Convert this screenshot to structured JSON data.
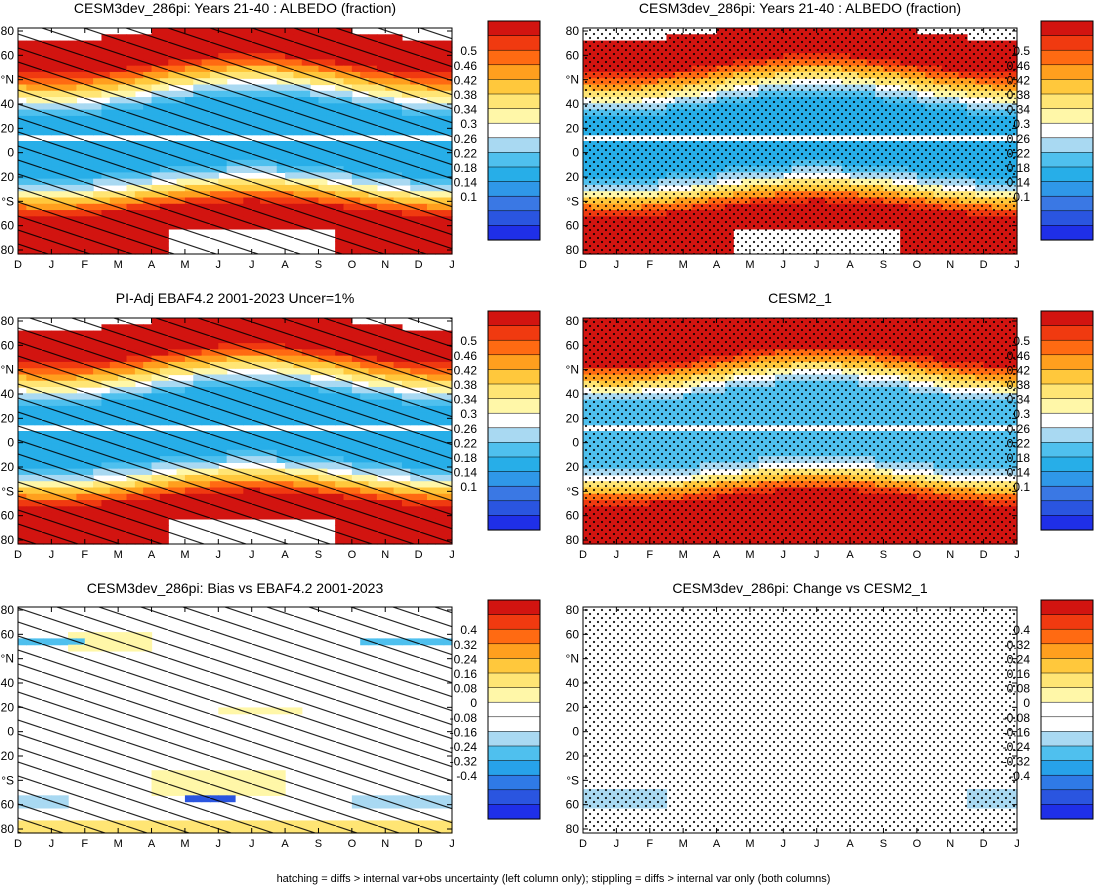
{
  "footer": "hatching = diffs > internal var+obs uncertainty (left column only); stippling = diffs > internal var only (both columns)",
  "month_labels": [
    "D",
    "J",
    "F",
    "M",
    "A",
    "M",
    "J",
    "J",
    "A",
    "S",
    "O",
    "N",
    "D",
    "J"
  ],
  "lat_ticks": [
    "80",
    "60",
    "°N",
    "40",
    "20",
    "0",
    "20",
    "°S",
    "60",
    "80"
  ],
  "palette": {
    "seq": [
      "#1f2fe8",
      "#2a55e0",
      "#3a78e4",
      "#2f98e8",
      "#27aee8",
      "#4fc0ee",
      "#a9d9f2",
      "#ffffff",
      "#fff7a8",
      "#ffe574",
      "#ffc83c",
      "#ff9f1e",
      "#ff6a12",
      "#f03a10",
      "#d21410"
    ],
    "div": [
      "#1f2fe8",
      "#2a55e0",
      "#2f7ae6",
      "#27a2ea",
      "#4fc0ee",
      "#a9d9f2",
      "#ffffff",
      "#ffffff",
      "#fff7a8",
      "#ffe574",
      "#ffc83c",
      "#ff9f1e",
      "#ff6a12",
      "#f03a10",
      "#d21410"
    ]
  },
  "chart_data": [
    {
      "type": "heatmap",
      "title": "CESM3dev_286pi: Years 21-40 : ALBEDO (fraction)",
      "colorbar": [
        "0.5",
        "0.46",
        "0.42",
        "0.38",
        "0.34",
        "0.3",
        "0.26",
        "0.22",
        "0.18",
        "0.14",
        "0.1"
      ],
      "scale": "albedo",
      "overlay": "hatching"
    },
    {
      "type": "heatmap",
      "title": "CESM3dev_286pi: Years 21-40 : ALBEDO (fraction)",
      "colorbar": [
        "0.5",
        "0.46",
        "0.42",
        "0.38",
        "0.34",
        "0.3",
        "0.26",
        "0.22",
        "0.18",
        "0.14",
        "0.1"
      ],
      "scale": "albedo",
      "overlay": "stippling"
    },
    {
      "type": "heatmap",
      "title": "PI-Adj EBAF4.2 2001-2023 Uncer=1%",
      "colorbar": [
        "0.5",
        "0.46",
        "0.42",
        "0.38",
        "0.34",
        "0.3",
        "0.26",
        "0.22",
        "0.18",
        "0.14",
        "0.1"
      ],
      "scale": "albedo",
      "overlay": "hatching"
    },
    {
      "type": "heatmap",
      "title": "CESM2_1",
      "colorbar": [
        "0.5",
        "0.46",
        "0.42",
        "0.38",
        "0.34",
        "0.3",
        "0.26",
        "0.22",
        "0.18",
        "0.14",
        "0.1"
      ],
      "scale": "albedo",
      "overlay": "stippling"
    },
    {
      "type": "heatmap",
      "title": "CESM3dev_286pi: Bias vs EBAF4.2 2001-2023",
      "colorbar": [
        "0.4",
        "0.32",
        "0.24",
        "0.16",
        "0.08",
        "0",
        "-0.08",
        "-0.16",
        "-0.24",
        "-0.32",
        "-0.4"
      ],
      "scale": "diff",
      "overlay": "hatching"
    },
    {
      "type": "heatmap",
      "title": "CESM3dev_286pi: Change vs CESM2_1",
      "colorbar": [
        "0.4",
        "0.32",
        "0.24",
        "0.16",
        "0.08",
        "0",
        "-0.08",
        "-0.16",
        "-0.24",
        "-0.32",
        "-0.4"
      ],
      "scale": "diff",
      "overlay": "stippling"
    }
  ]
}
